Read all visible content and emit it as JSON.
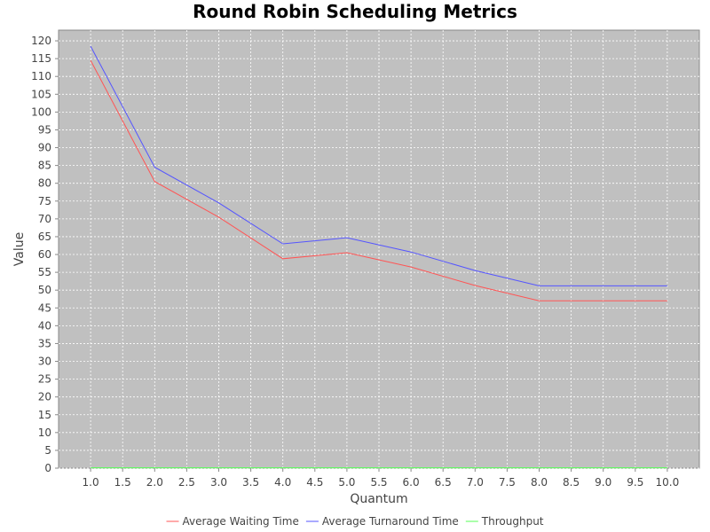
{
  "chart_data": {
    "type": "line",
    "title": "Round Robin Scheduling Metrics",
    "xlabel": "Quantum",
    "ylabel": "Value",
    "x": [
      1.0,
      2.0,
      3.0,
      4.0,
      5.0,
      6.0,
      7.0,
      8.0,
      9.0,
      10.0
    ],
    "xlim": [
      0.5,
      10.5
    ],
    "ylim": [
      0,
      123
    ],
    "x_ticks": [
      "1.0",
      "1.5",
      "2.0",
      "2.5",
      "3.0",
      "3.5",
      "4.0",
      "4.5",
      "5.0",
      "5.5",
      "6.0",
      "6.5",
      "7.0",
      "7.5",
      "8.0",
      "8.5",
      "9.0",
      "9.5",
      "10.0"
    ],
    "y_ticks": [
      "0",
      "5",
      "10",
      "15",
      "20",
      "25",
      "30",
      "35",
      "40",
      "45",
      "50",
      "55",
      "60",
      "65",
      "70",
      "75",
      "80",
      "85",
      "90",
      "95",
      "100",
      "105",
      "110",
      "115",
      "120"
    ],
    "grid": true,
    "legend_position": "bottom",
    "plot_background": "#c0c0c0",
    "series": [
      {
        "name": "Average Waiting Time",
        "color": "#ff5555",
        "values": [
          114.5,
          80.5,
          70.5,
          58.8,
          60.5,
          56.5,
          51.3,
          47.0,
          47.0,
          47.0
        ]
      },
      {
        "name": "Average Turnaround Time",
        "color": "#5555ff",
        "values": [
          118.5,
          84.5,
          74.5,
          63.0,
          64.7,
          60.7,
          55.5,
          51.2,
          51.2,
          51.2
        ]
      },
      {
        "name": "Throughput",
        "color": "#55ff55",
        "values": [
          0.1,
          0.1,
          0.1,
          0.1,
          0.1,
          0.1,
          0.1,
          0.1,
          0.1,
          0.1
        ]
      }
    ]
  }
}
